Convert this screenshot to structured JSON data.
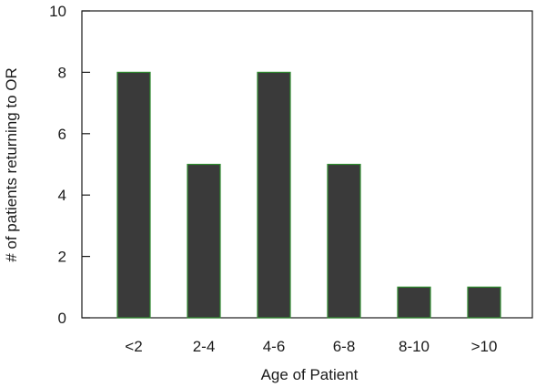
{
  "chart_data": {
    "type": "bar",
    "title": "",
    "xlabel": "Age of Patient",
    "ylabel": "# of patients returning to OR",
    "categories": [
      "<2",
      "2-4",
      "4-6",
      "6-8",
      "8-10",
      ">10"
    ],
    "values": [
      8,
      5,
      8,
      5,
      1,
      1
    ],
    "ylim": [
      0,
      10
    ],
    "yticks": [
      "0",
      "2",
      "4",
      "6",
      "8",
      "10"
    ],
    "grid": false,
    "legend": "none",
    "colors": {
      "bar_fill": "#3a3a3a",
      "bar_stroke": "#2e8b2e",
      "axis": "#1a1a1a"
    }
  }
}
